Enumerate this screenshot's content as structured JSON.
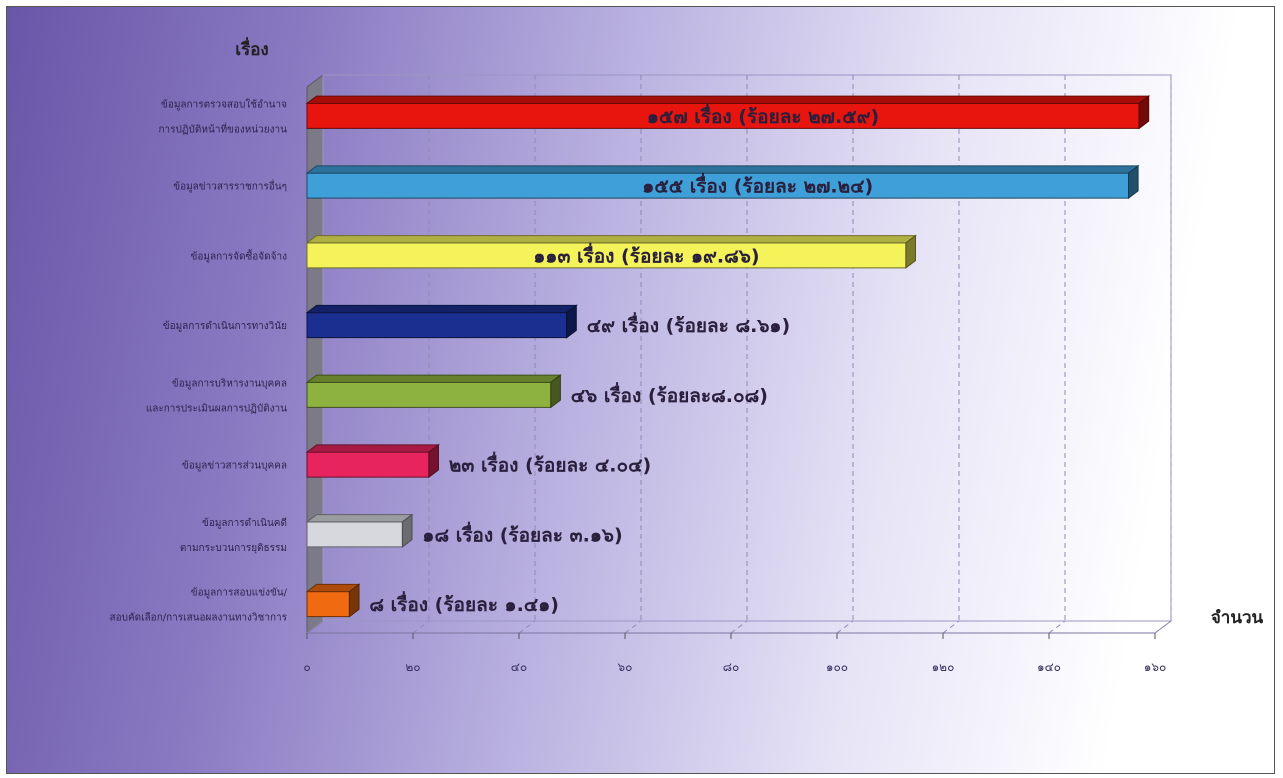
{
  "chart_data": {
    "type": "bar",
    "orientation": "horizontal",
    "ylabel": "เรื่อง",
    "xlabel": "จำนวน",
    "xlim": [
      0,
      160
    ],
    "grid": true,
    "xticks": [
      0,
      20,
      40,
      60,
      80,
      100,
      120,
      140,
      160
    ],
    "xtick_labels": [
      "๐",
      "๒๐",
      "๔๐",
      "๖๐",
      "๘๐",
      "๑๐๐",
      "๑๒๐",
      "๑๔๐",
      "๑๖๐"
    ],
    "categories": [
      [
        "ข้อมูลการตรวจสอบใช้อำนาจ",
        "การปฏิบัติหน้าที่ของหน่วยงาน"
      ],
      [
        "ข้อมูลข่าวสารราชการอื่นๆ"
      ],
      [
        "ข้อมูลการจัดซื้อจัดจ้าง"
      ],
      [
        "ข้อมูลการดำเนินการทางวินัย"
      ],
      [
        "ข้อมูลการบริหารงานบุคคล",
        "และการประเมินผลการปฏิบัติงาน"
      ],
      [
        "ข้อมูลข่าวสารส่วนบุคคล"
      ],
      [
        "ข้อมูลการดำเนินคดี",
        "ตามกระบวนการยุติธรรม"
      ],
      [
        "ข้อมูลการสอบแข่งขัน/",
        "สอบคัดเลือก/การเสนอผลงานทางวิชาการ"
      ]
    ],
    "values": [
      157,
      155,
      113,
      49,
      46,
      23,
      18,
      8
    ],
    "data_labels": [
      "๑๕๗ เรื่อง (ร้อยละ ๒๗.๕๙)",
      "๑๕๕ เรื่อง (ร้อยละ ๒๗.๒๔)",
      "๑๑๓ เรื่อง (ร้อยละ ๑๙.๘๖)",
      "๔๙ เรื่อง (ร้อยละ ๘.๖๑)",
      "๔๖ เรื่อง (ร้อยละ๘.๐๘)",
      "๒๓ เรื่อง (ร้อยละ ๔.๐๔)",
      "๑๘ เรื่อง (ร้อยละ ๓.๑๖)",
      "๘ เรื่อง (ร้อยละ ๑.๔๑)"
    ],
    "colors": [
      "#e8140e",
      "#3f9fd8",
      "#f4f35a",
      "#1a2f8f",
      "#8db23f",
      "#e8245e",
      "#d6d8de",
      "#f06a12"
    ]
  }
}
